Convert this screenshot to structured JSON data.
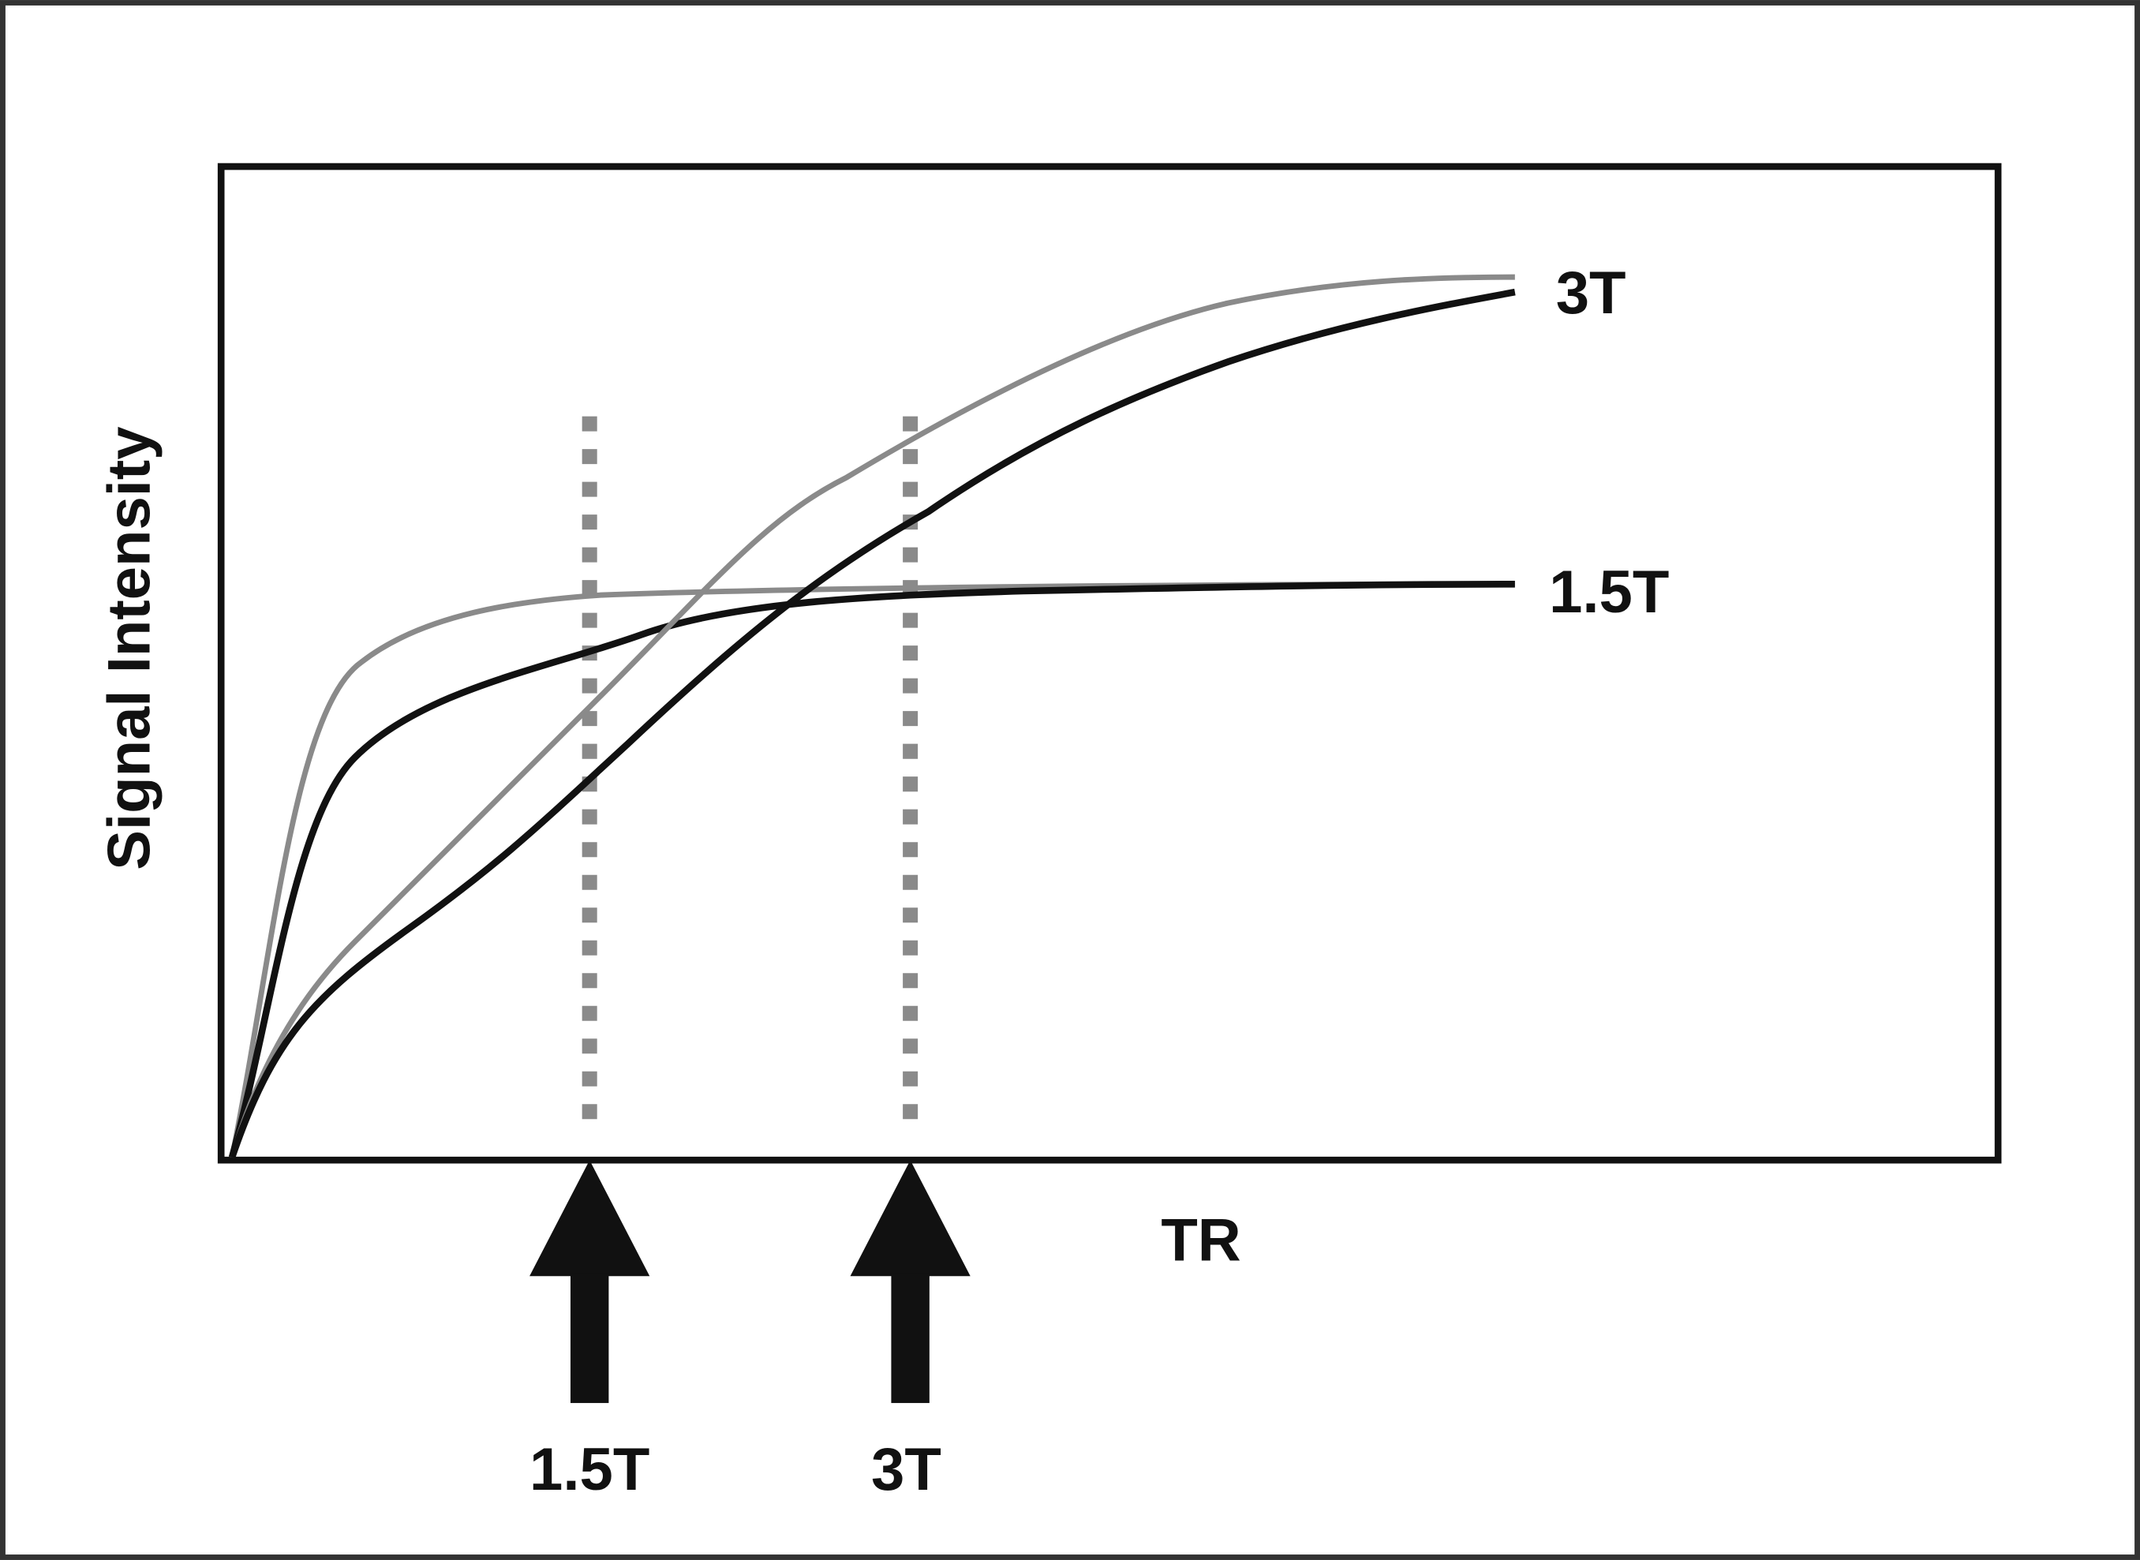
{
  "axis_labels": {
    "y": "Signal Intensity",
    "x": "TR"
  },
  "curve_labels": [
    "3T",
    "1.5T"
  ],
  "arrow_labels": [
    "1.5T",
    "3T"
  ]
}
